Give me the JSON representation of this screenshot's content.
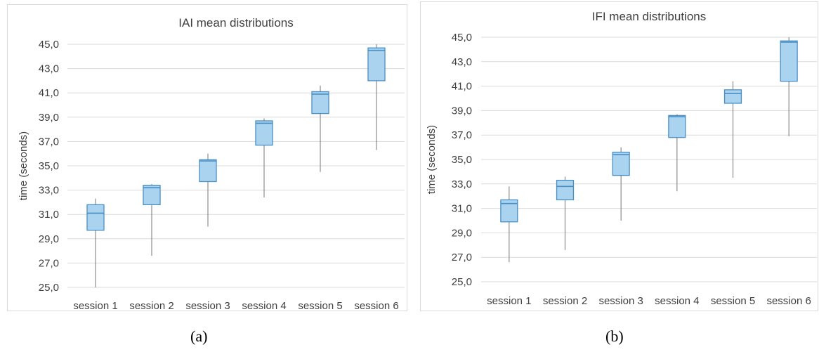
{
  "chart_data": [
    {
      "type": "box",
      "title": "IAI mean distributions",
      "xlabel": "",
      "ylabel": "time (seconds)",
      "ylim": [
        25.0,
        45.0
      ],
      "yticks": [
        "25,0",
        "27,0",
        "29,0",
        "31,0",
        "33,0",
        "35,0",
        "37,0",
        "39,0",
        "41,0",
        "43,0",
        "45,0"
      ],
      "grid": true,
      "categories": [
        "session 1",
        "session 2",
        "session 3",
        "session 4",
        "session 5",
        "session 6"
      ],
      "boxes": [
        {
          "min": 25.0,
          "q1": 29.7,
          "median": 31.1,
          "q3": 31.8,
          "max": 32.3
        },
        {
          "min": 27.6,
          "q1": 31.8,
          "median": 33.2,
          "q3": 33.4,
          "max": 33.5
        },
        {
          "min": 30.0,
          "q1": 33.7,
          "median": 35.4,
          "q3": 35.5,
          "max": 36.0
        },
        {
          "min": 32.4,
          "q1": 36.7,
          "median": 38.5,
          "q3": 38.7,
          "max": 38.9
        },
        {
          "min": 34.5,
          "q1": 39.3,
          "median": 40.9,
          "q3": 41.1,
          "max": 41.6
        },
        {
          "min": 36.3,
          "q1": 42.0,
          "median": 44.5,
          "q3": 44.7,
          "max": 45.0
        }
      ],
      "box_fill": "#a9d3ee",
      "box_stroke": "#4a8fc4",
      "whisker_color": "#8c8c8c",
      "grid_color": "#d9d9d9"
    },
    {
      "type": "box",
      "title": "IFI mean distributions",
      "xlabel": "",
      "ylabel": "time (seconds)",
      "ylim": [
        25.0,
        45.0
      ],
      "yticks": [
        "25,0",
        "27,0",
        "29,0",
        "31,0",
        "33,0",
        "35,0",
        "37,0",
        "39,0",
        "41,0",
        "43,0",
        "45,0"
      ],
      "grid": true,
      "categories": [
        "session 1",
        "session 2",
        "session 3",
        "session 4",
        "session 5",
        "session 6"
      ],
      "boxes": [
        {
          "min": 26.6,
          "q1": 29.9,
          "median": 31.4,
          "q3": 31.7,
          "max": 32.8
        },
        {
          "min": 27.6,
          "q1": 31.7,
          "median": 32.8,
          "q3": 33.3,
          "max": 33.6
        },
        {
          "min": 30.0,
          "q1": 33.7,
          "median": 35.4,
          "q3": 35.6,
          "max": 36.0
        },
        {
          "min": 32.4,
          "q1": 36.8,
          "median": 38.5,
          "q3": 38.6,
          "max": 38.7
        },
        {
          "min": 33.5,
          "q1": 39.6,
          "median": 40.4,
          "q3": 40.7,
          "max": 41.4
        },
        {
          "min": 36.9,
          "q1": 41.4,
          "median": 44.6,
          "q3": 44.7,
          "max": 45.0
        }
      ],
      "box_fill": "#a9d3ee",
      "box_stroke": "#4a8fc4",
      "whisker_color": "#8c8c8c",
      "grid_color": "#d9d9d9"
    }
  ],
  "labels": {
    "a": "(a)",
    "b": "(b)"
  }
}
